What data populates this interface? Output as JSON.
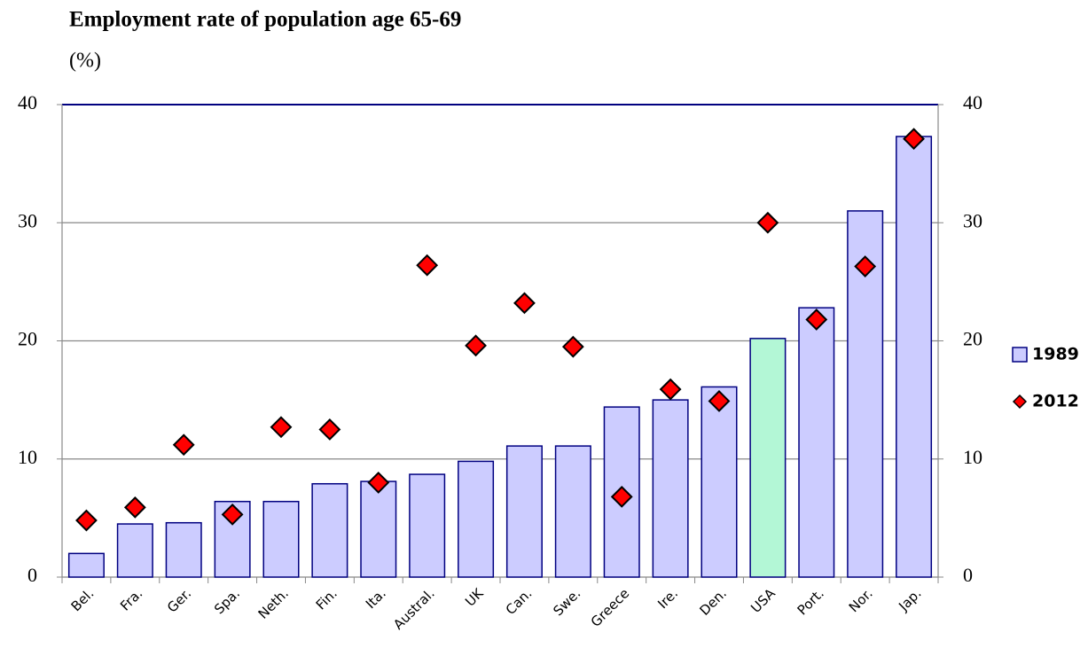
{
  "chart_data": {
    "type": "bar",
    "title": "Employment rate of population age 65-69",
    "subtitle": "(%)",
    "categories": [
      "Bel.",
      "Fra.",
      "Ger.",
      "Spa.",
      "Neth.",
      "Fin.",
      "Ita.",
      "Austral.",
      "UK",
      "Can.",
      "Swe.",
      "Greece",
      "Ire.",
      "Den.",
      "USA",
      "Port.",
      "Nor.",
      "Jap."
    ],
    "series": [
      {
        "name": "1989",
        "type": "bar",
        "color": "#ccccff",
        "edge_color": "#000080",
        "highlight": {
          "category": "USA",
          "color": "#b3f7d6"
        },
        "legend_color": "#000080",
        "values": [
          2.0,
          4.5,
          4.6,
          6.4,
          6.4,
          7.9,
          8.1,
          8.7,
          9.8,
          11.1,
          11.1,
          14.4,
          15.0,
          16.1,
          20.2,
          22.8,
          31.0,
          37.3
        ]
      },
      {
        "name": "2012",
        "type": "scatter",
        "color": "#ff0000",
        "legend_color": "#c00000",
        "values": [
          4.8,
          5.9,
          11.2,
          5.3,
          12.7,
          12.5,
          8.0,
          26.4,
          19.6,
          23.2,
          19.5,
          6.8,
          15.9,
          14.9,
          30.0,
          21.8,
          26.3,
          37.1
        ]
      }
    ],
    "ylim": [
      0,
      40
    ],
    "yticks": [
      0,
      10,
      20,
      30,
      40
    ],
    "y2lim": [
      0,
      40
    ],
    "y2ticks": [
      0,
      10,
      20,
      30,
      40
    ],
    "grid": true,
    "legend": "right"
  }
}
